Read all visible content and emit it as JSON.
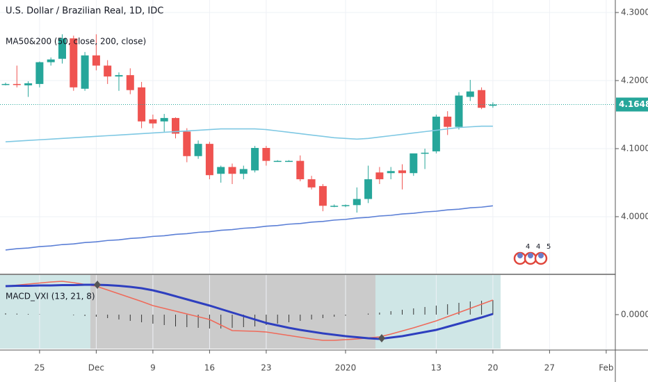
{
  "chart_data": {
    "type": "candlestick",
    "title": "U.S. Dollar / Brazilian Real, 1D, IDC",
    "indicator": "MA50&200 (50, close, 200, close)",
    "categories": [
      null,
      null,
      null,
      "25",
      null,
      null,
      null,
      null,
      "Dec",
      null,
      null,
      null,
      null,
      "9",
      null,
      null,
      null,
      null,
      "16",
      null,
      null,
      null,
      null,
      "23",
      null,
      null,
      null,
      null,
      null,
      null,
      "2020",
      null,
      null,
      null,
      null,
      null,
      null,
      null,
      "13",
      null,
      null,
      null,
      null,
      "20",
      null,
      null,
      null,
      null,
      "27",
      null,
      null,
      null,
      null,
      "Feb"
    ],
    "open": [
      4.195,
      4.195,
      4.193,
      4.195,
      4.227,
      4.232,
      4.262,
      4.188,
      4.237,
      4.222,
      4.206,
      4.208,
      4.19,
      4.143,
      4.14,
      4.145,
      4.125,
      4.089,
      4.107,
      4.063,
      4.073,
      4.063,
      4.068,
      4.101,
      4.082,
      4.082,
      4.082,
      4.055,
      4.045,
      4.016,
      4.016,
      4.017,
      4.026,
      4.065,
      4.064,
      4.068,
      4.064,
      4.093,
      4.096,
      4.147,
      4.132,
      4.176,
      4.186,
      4.163,
      null,
      null,
      null,
      null,
      null,
      null,
      null,
      null,
      null,
      null
    ],
    "high": [
      4.197,
      4.222,
      4.199,
      4.228,
      4.234,
      4.268,
      4.266,
      4.242,
      4.268,
      4.23,
      4.212,
      4.218,
      4.198,
      4.15,
      4.151,
      4.146,
      4.13,
      4.112,
      4.11,
      4.075,
      4.078,
      4.075,
      4.104,
      4.104,
      4.083,
      4.083,
      4.09,
      4.06,
      4.048,
      4.018,
      4.018,
      4.043,
      4.075,
      4.073,
      4.073,
      4.077,
      4.092,
      4.1,
      4.15,
      4.155,
      4.183,
      4.201,
      4.19,
      4.168,
      null,
      null,
      null,
      null,
      null,
      null,
      null,
      null,
      null,
      null
    ],
    "low": [
      4.193,
      4.19,
      4.176,
      4.19,
      4.222,
      4.225,
      4.185,
      4.185,
      4.215,
      4.195,
      4.185,
      4.18,
      4.13,
      4.13,
      4.125,
      4.115,
      4.08,
      4.085,
      4.055,
      4.05,
      4.048,
      4.055,
      4.065,
      4.075,
      4.081,
      4.081,
      4.052,
      4.04,
      4.008,
      4.014,
      4.014,
      4.006,
      4.02,
      4.048,
      4.055,
      4.04,
      4.06,
      4.07,
      4.093,
      4.12,
      4.128,
      4.17,
      4.158,
      4.16,
      null,
      null,
      null,
      null,
      null,
      null,
      null,
      null,
      null,
      null
    ],
    "close": [
      4.195,
      4.194,
      4.196,
      4.227,
      4.231,
      4.262,
      4.19,
      4.237,
      4.222,
      4.206,
      4.208,
      4.186,
      4.14,
      4.137,
      4.145,
      4.122,
      4.089,
      4.107,
      4.061,
      4.073,
      4.063,
      4.07,
      4.101,
      4.082,
      4.082,
      4.082,
      4.055,
      4.043,
      4.016,
      4.016,
      4.017,
      4.026,
      4.055,
      4.055,
      4.067,
      4.064,
      4.093,
      4.094,
      4.147,
      4.132,
      4.178,
      4.184,
      4.16,
      4.1648,
      null,
      null,
      null,
      null,
      null,
      null,
      null,
      null,
      null,
      null
    ],
    "up_color": "#26a69a",
    "down_color": "#ef5350",
    "series": [
      {
        "color": "#7ec8e3",
        "values": [
          4.11,
          4.111,
          4.112,
          4.113,
          4.114,
          4.115,
          4.116,
          4.117,
          4.118,
          4.119,
          4.12,
          4.121,
          4.122,
          4.123,
          4.124,
          4.125,
          4.126,
          4.127,
          4.128,
          4.129,
          4.129,
          4.129,
          4.129,
          4.128,
          4.126,
          4.124,
          4.122,
          4.12,
          4.118,
          4.116,
          4.115,
          4.114,
          4.115,
          4.117,
          4.119,
          4.121,
          4.123,
          4.125,
          4.127,
          4.129,
          4.131,
          4.132,
          4.133,
          4.133,
          null,
          null,
          null,
          null,
          null,
          null,
          null,
          null,
          null,
          null
        ]
      },
      {
        "color": "#5b7fd6",
        "values": [
          3.951,
          3.953,
          3.954,
          3.956,
          3.957,
          3.959,
          3.96,
          3.962,
          3.963,
          3.965,
          3.966,
          3.968,
          3.969,
          3.971,
          3.972,
          3.974,
          3.975,
          3.977,
          3.978,
          3.98,
          3.981,
          3.983,
          3.984,
          3.986,
          3.987,
          3.989,
          3.99,
          3.992,
          3.993,
          3.995,
          3.996,
          3.998,
          3.999,
          4.001,
          4.002,
          4.004,
          4.005,
          4.007,
          4.008,
          4.01,
          4.011,
          4.013,
          4.014,
          4.016,
          null,
          null,
          null,
          null,
          null,
          null,
          null,
          null,
          null,
          null
        ]
      }
    ],
    "ylim": [
      3.9173,
      4.3184
    ],
    "yticks": [
      {
        "value": 4.0,
        "label": "4.0000"
      },
      {
        "value": 4.1,
        "label": "4.1000"
      },
      {
        "value": 4.2,
        "label": "4.2000"
      },
      {
        "value": 4.3,
        "label": "4.3000"
      }
    ],
    "last_price": 4.1648,
    "last_price_color": "#26a69a",
    "events": [
      "4",
      "4",
      "5"
    ],
    "macd": {
      "label": "MACD_VXI (13, 21, 8)",
      "macd_color": "#2e3fbf",
      "signal_color": "#ef6a5a",
      "histogram_color": "#333333",
      "macd": [
        0.0082,
        0.0083,
        0.0083,
        0.0084,
        0.0084,
        0.0085,
        0.0085,
        0.0086,
        0.0086,
        0.0085,
        0.0083,
        0.008,
        0.0076,
        0.007,
        0.0062,
        0.0053,
        0.0044,
        0.0035,
        0.0026,
        0.0016,
        0.0006,
        -0.0004,
        -0.0014,
        -0.0024,
        -0.0031,
        -0.0038,
        -0.0044,
        -0.0049,
        -0.0054,
        -0.0058,
        -0.0062,
        -0.0065,
        -0.0068,
        -0.007,
        -0.0066,
        -0.0062,
        -0.0056,
        -0.005,
        -0.0044,
        -0.0035,
        -0.0026,
        -0.0017,
        -0.0008,
        0.0002,
        null,
        null,
        null,
        null,
        null,
        null,
        null,
        null,
        null,
        null
      ],
      "signal": [
        0.0082,
        0.0085,
        0.0088,
        0.0091,
        0.0094,
        0.0096,
        0.0092,
        0.0087,
        0.0082,
        0.0071,
        0.006,
        0.0049,
        0.0038,
        0.0026,
        0.0018,
        0.001,
        0.0002,
        -0.0006,
        -0.0014,
        -0.003,
        -0.0046,
        -0.0047,
        -0.0048,
        -0.005,
        -0.0055,
        -0.006,
        -0.0065,
        -0.007,
        -0.0074,
        -0.0074,
        -0.0072,
        -0.007,
        -0.0067,
        -0.0064,
        -0.0056,
        -0.0047,
        -0.0038,
        -0.0028,
        -0.0018,
        -0.0006,
        0.0006,
        0.0018,
        0.003,
        0.0042,
        null,
        null,
        null,
        null,
        null,
        null,
        null,
        null,
        null,
        null
      ],
      "histogram": [
        0.0004,
        0.0003,
        0.0002,
        0.0001,
        0,
        0,
        -0.0002,
        -0.0004,
        -0.0006,
        -0.001,
        -0.0014,
        -0.0018,
        -0.0022,
        -0.0026,
        -0.003,
        -0.0034,
        -0.0036,
        -0.0038,
        -0.004,
        -0.004,
        -0.0038,
        -0.0036,
        -0.0034,
        -0.003,
        -0.0026,
        -0.0022,
        -0.0018,
        -0.0014,
        -0.001,
        -0.0006,
        -0.0003,
        0,
        0.0003,
        0.0006,
        0.001,
        0.0014,
        0.0018,
        0.0022,
        0.0026,
        0.003,
        0.0034,
        0.0038,
        0.004,
        0.0042,
        null,
        null,
        null,
        null,
        null,
        null,
        null,
        null,
        null,
        null
      ],
      "ylim": [
        -0.0104,
        0.0114
      ],
      "yticks": [
        {
          "value": 0,
          "label": "0.0000"
        }
      ]
    }
  }
}
